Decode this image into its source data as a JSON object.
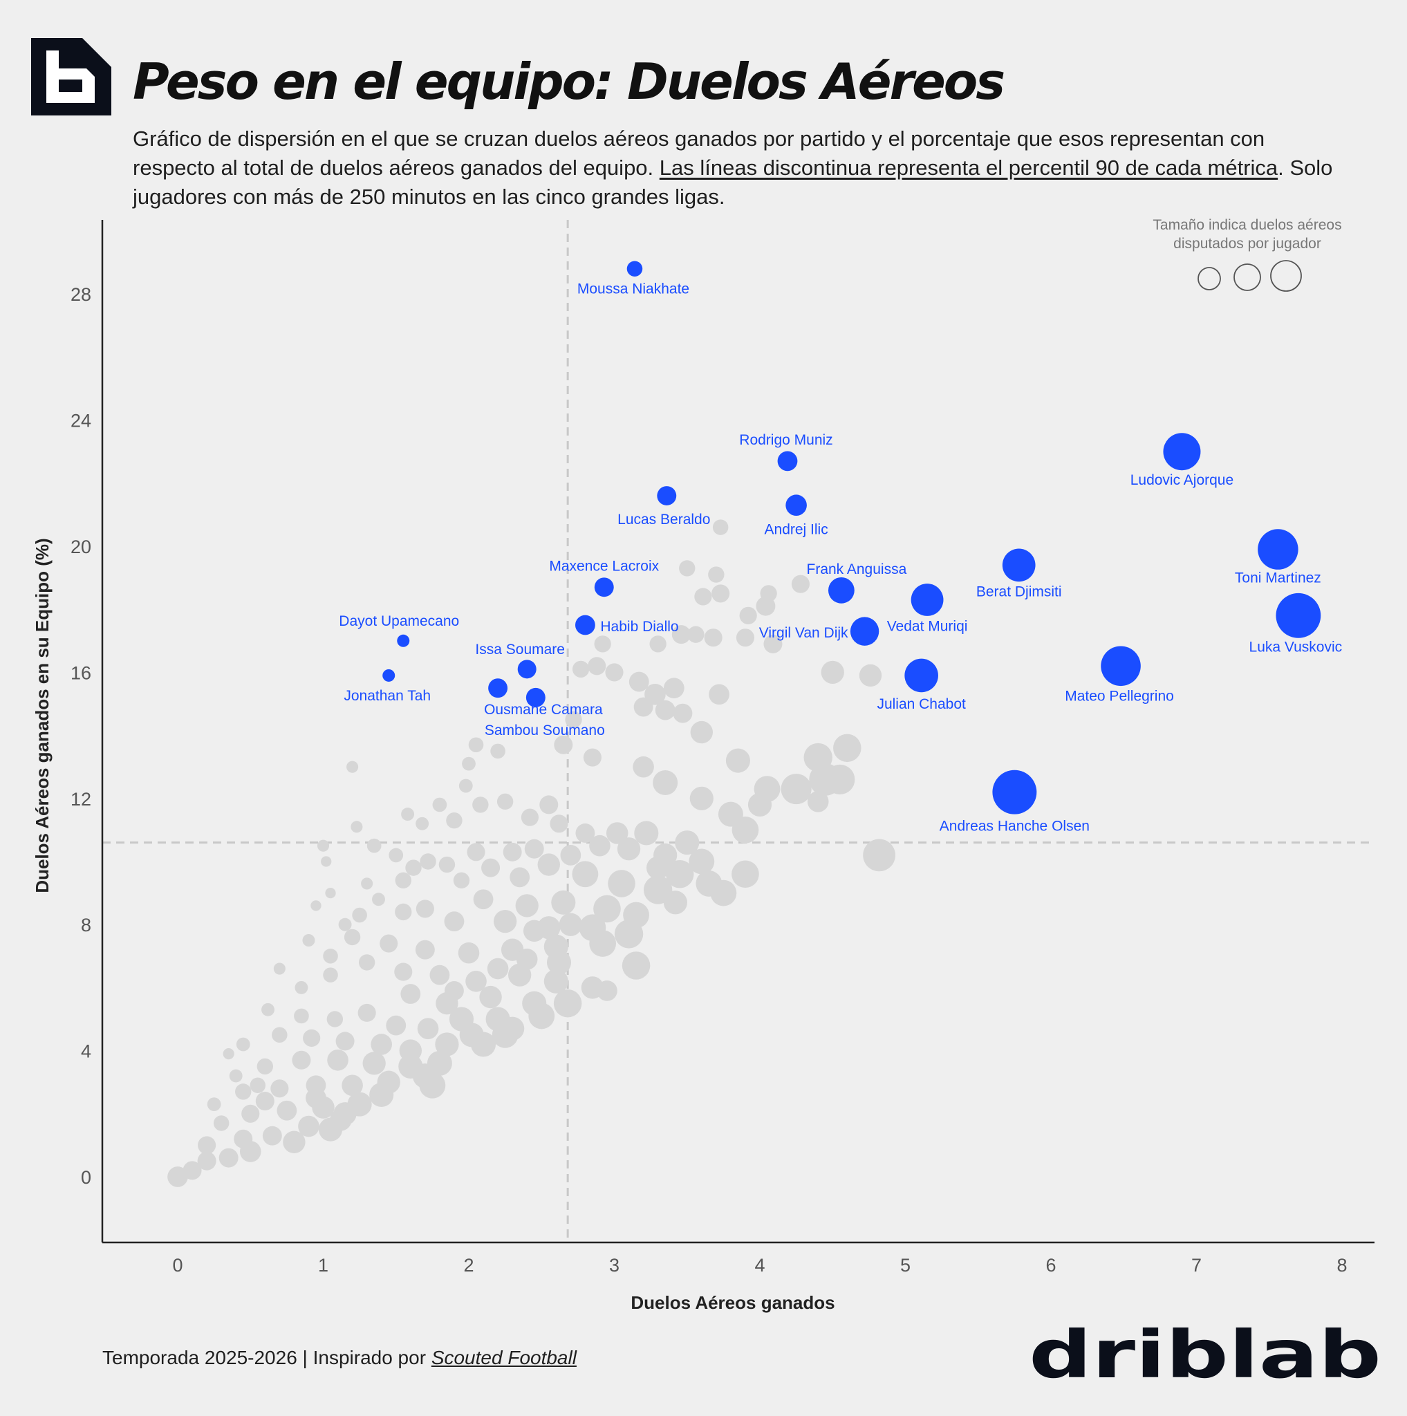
{
  "header": {
    "title": "Peso en el equipo: Duelos Aéreos",
    "subtitle_part1": "Gráfico de dispersión en el que se cruzan duelos aéreos ganados por partido y el porcentaje que esos representan con respecto al total de duelos aéreos ganados del equipo. ",
    "subtitle_link": "Las líneas discontinua representa el percentil 90 de cada métrica",
    "subtitle_part2": ". Solo jugadores con más de 250 minutos en las cinco grandes ligas."
  },
  "footer": {
    "season_text": "Temporada 2025-2026 | Inspirado por ",
    "inspired_by": "Scouted Football",
    "brand": "driblab"
  },
  "colors": {
    "highlight": "#1a4dff",
    "background_points": "#d6d6d6",
    "background": "#efefef",
    "axis": "#222222",
    "reference_line": "#c8c8c8",
    "brand_dark": "#0b0f1a"
  },
  "chart_data": {
    "type": "scatter",
    "xlabel": "Duelos Aéreos ganados",
    "ylabel": "Duelos Aéreos ganados en su Equipo (%)",
    "xlim": [
      -0.5,
      8.2
    ],
    "ylim": [
      -2,
      30.4
    ],
    "xticks": [
      0,
      1,
      2,
      3,
      4,
      5,
      6,
      7,
      8
    ],
    "yticks": [
      0,
      4,
      8,
      12,
      16,
      20,
      24,
      28
    ],
    "grid": false,
    "reference_lines": {
      "x_p90": 2.68,
      "y_p90": 10.6
    },
    "size_legend": {
      "title": "Tamaño indica duelos aéreos disputados por jugador",
      "position": "top-right"
    },
    "highlighted": [
      {
        "name": "Moussa Niakhate",
        "x": 3.14,
        "y": 28.8,
        "size": 2.5
      },
      {
        "name": "Rodrigo Muniz",
        "x": 4.19,
        "y": 22.7,
        "size": 3.2
      },
      {
        "name": "Andrej Ilic",
        "x": 4.25,
        "y": 21.3,
        "size": 3.4
      },
      {
        "name": "Lucas Beraldo",
        "x": 3.36,
        "y": 21.6,
        "size": 3.1
      },
      {
        "name": "Ludovic Ajorque",
        "x": 6.9,
        "y": 23.0,
        "size": 6.0
      },
      {
        "name": "Toni Martinez",
        "x": 7.56,
        "y": 19.9,
        "size": 6.5
      },
      {
        "name": "Luka Vuskovic",
        "x": 7.7,
        "y": 17.8,
        "size": 7.2
      },
      {
        "name": "Berat Djimsiti",
        "x": 5.78,
        "y": 19.4,
        "size": 5.3
      },
      {
        "name": "Maxence Lacroix",
        "x": 2.93,
        "y": 18.7,
        "size": 3.1
      },
      {
        "name": "Frank Anguissa",
        "x": 4.56,
        "y": 18.6,
        "size": 4.2
      },
      {
        "name": "Vedat Muriqi",
        "x": 5.15,
        "y": 18.3,
        "size": 5.2
      },
      {
        "name": "Habib Diallo",
        "x": 2.8,
        "y": 17.5,
        "size": 3.2
      },
      {
        "name": "Virgil Van Dijk",
        "x": 4.72,
        "y": 17.3,
        "size": 4.6
      },
      {
        "name": "Dayot Upamecano",
        "x": 1.55,
        "y": 17.0,
        "size": 2.0
      },
      {
        "name": "Issa Soumare",
        "x": 2.4,
        "y": 16.1,
        "size": 3.0
      },
      {
        "name": "Jonathan Tah",
        "x": 1.45,
        "y": 15.9,
        "size": 2.0
      },
      {
        "name": "Mateo Pellegrino",
        "x": 6.48,
        "y": 16.2,
        "size": 6.4
      },
      {
        "name": "Julian Chabot",
        "x": 5.11,
        "y": 15.9,
        "size": 5.4
      },
      {
        "name": "Ousmane Camara",
        "x": 2.2,
        "y": 15.5,
        "size": 3.1
      },
      {
        "name": "Sambou Soumano",
        "x": 2.46,
        "y": 15.2,
        "size": 3.1
      },
      {
        "name": "Andreas Hanche Olsen",
        "x": 5.75,
        "y": 12.2,
        "size": 7.1
      }
    ],
    "others": [
      [
        3.73,
        20.6,
        2.5
      ],
      [
        3.5,
        19.3,
        2.6
      ],
      [
        3.7,
        19.1,
        2.6
      ],
      [
        4.06,
        18.5,
        2.7
      ],
      [
        4.28,
        18.8,
        2.9
      ],
      [
        3.61,
        18.4,
        2.8
      ],
      [
        3.73,
        18.5,
        2.9
      ],
      [
        4.04,
        18.1,
        3.1
      ],
      [
        3.92,
        17.8,
        2.8
      ],
      [
        3.46,
        17.2,
        3.0
      ],
      [
        3.56,
        17.2,
        2.7
      ],
      [
        3.68,
        17.1,
        2.9
      ],
      [
        3.9,
        17.1,
        2.9
      ],
      [
        4.09,
        16.9,
        3.0
      ],
      [
        2.92,
        16.9,
        2.7
      ],
      [
        3.3,
        16.9,
        2.7
      ],
      [
        4.5,
        16.0,
        3.7
      ],
      [
        4.76,
        15.9,
        3.6
      ],
      [
        2.77,
        16.1,
        2.7
      ],
      [
        2.88,
        16.2,
        2.9
      ],
      [
        3.0,
        16.0,
        2.9
      ],
      [
        3.17,
        15.7,
        3.2
      ],
      [
        3.28,
        15.3,
        3.4
      ],
      [
        3.41,
        15.5,
        3.3
      ],
      [
        3.72,
        15.3,
        3.3
      ],
      [
        3.2,
        14.9,
        3.1
      ],
      [
        3.35,
        14.8,
        3.2
      ],
      [
        3.47,
        14.7,
        3.1
      ],
      [
        2.72,
        14.5,
        2.7
      ],
      [
        3.6,
        14.1,
        3.6
      ],
      [
        2.65,
        13.7,
        3.0
      ],
      [
        2.85,
        13.3,
        2.9
      ],
      [
        3.2,
        13.0,
        3.4
      ],
      [
        3.35,
        12.5,
        4.0
      ],
      [
        3.6,
        12.0,
        3.8
      ],
      [
        3.85,
        13.2,
        3.9
      ],
      [
        4.05,
        12.3,
        4.2
      ],
      [
        4.4,
        13.3,
        4.6
      ],
      [
        4.45,
        12.6,
        5.2
      ],
      [
        4.25,
        12.3,
        4.9
      ],
      [
        4.55,
        12.6,
        4.8
      ],
      [
        4.0,
        11.8,
        3.8
      ],
      [
        3.8,
        11.5,
        4.0
      ],
      [
        3.9,
        11.0,
        4.3
      ],
      [
        4.4,
        11.9,
        3.4
      ],
      [
        4.6,
        13.6,
        4.5
      ],
      [
        2.05,
        13.7,
        2.4
      ],
      [
        2.2,
        13.5,
        2.4
      ],
      [
        2.0,
        13.1,
        2.2
      ],
      [
        1.98,
        12.4,
        2.2
      ],
      [
        1.2,
        13.0,
        1.9
      ],
      [
        1.23,
        11.1,
        1.9
      ],
      [
        1.58,
        11.5,
        2.1
      ],
      [
        1.68,
        11.2,
        2.1
      ],
      [
        1.8,
        11.8,
        2.3
      ],
      [
        1.9,
        11.3,
        2.6
      ],
      [
        2.08,
        11.8,
        2.6
      ],
      [
        2.25,
        11.9,
        2.6
      ],
      [
        2.42,
        11.4,
        2.8
      ],
      [
        2.55,
        11.8,
        3.0
      ],
      [
        2.62,
        11.2,
        2.9
      ],
      [
        2.8,
        10.9,
        3.1
      ],
      [
        3.02,
        10.9,
        3.5
      ],
      [
        3.22,
        10.9,
        3.9
      ],
      [
        3.5,
        10.6,
        3.9
      ],
      [
        3.45,
        9.6,
        4.5
      ],
      [
        3.65,
        9.3,
        4.2
      ],
      [
        3.75,
        9.0,
        4.2
      ],
      [
        3.9,
        9.6,
        4.4
      ],
      [
        4.82,
        10.2,
        5.2
      ],
      [
        1.0,
        10.5,
        1.9
      ],
      [
        1.02,
        10.0,
        1.7
      ],
      [
        1.05,
        9.0,
        1.7
      ],
      [
        0.95,
        8.6,
        1.7
      ],
      [
        1.3,
        9.3,
        1.9
      ],
      [
        1.38,
        8.8,
        2.1
      ],
      [
        1.55,
        9.4,
        2.6
      ],
      [
        1.62,
        9.8,
        2.6
      ],
      [
        1.85,
        9.9,
        2.6
      ],
      [
        1.95,
        9.4,
        2.6
      ],
      [
        2.15,
        9.8,
        3.0
      ],
      [
        2.35,
        9.5,
        3.2
      ],
      [
        2.55,
        9.9,
        3.6
      ],
      [
        2.8,
        9.6,
        4.2
      ],
      [
        3.05,
        9.3,
        4.4
      ],
      [
        3.3,
        9.1,
        4.6
      ],
      [
        2.65,
        8.7,
        3.9
      ],
      [
        2.95,
        8.5,
        4.4
      ],
      [
        3.15,
        8.3,
        4.2
      ],
      [
        3.42,
        8.7,
        3.8
      ],
      [
        2.4,
        8.6,
        3.7
      ],
      [
        2.1,
        8.8,
        3.2
      ],
      [
        1.7,
        8.5,
        2.9
      ],
      [
        1.9,
        8.1,
        3.2
      ],
      [
        2.25,
        8.1,
        3.7
      ],
      [
        2.55,
        7.9,
        3.7
      ],
      [
        2.85,
        7.9,
        4.3
      ],
      [
        3.1,
        7.7,
        4.6
      ],
      [
        2.92,
        7.4,
        4.3
      ],
      [
        2.6,
        7.3,
        3.9
      ],
      [
        2.3,
        7.2,
        3.6
      ],
      [
        2.0,
        7.1,
        3.4
      ],
      [
        1.7,
        7.2,
        3.1
      ],
      [
        1.45,
        7.4,
        2.9
      ],
      [
        1.2,
        7.6,
        2.6
      ],
      [
        1.15,
        8.0,
        2.1
      ],
      [
        0.9,
        7.5,
        2.0
      ],
      [
        0.7,
        6.6,
        1.9
      ],
      [
        0.85,
        6.0,
        2.1
      ],
      [
        1.05,
        6.4,
        2.4
      ],
      [
        1.3,
        6.8,
        2.6
      ],
      [
        1.55,
        6.5,
        2.9
      ],
      [
        1.8,
        6.4,
        3.2
      ],
      [
        2.05,
        6.2,
        3.4
      ],
      [
        2.35,
        6.4,
        3.7
      ],
      [
        2.6,
        6.2,
        3.9
      ],
      [
        3.15,
        6.7,
        4.5
      ],
      [
        1.6,
        5.8,
        3.2
      ],
      [
        1.85,
        5.5,
        3.6
      ],
      [
        2.15,
        5.7,
        3.6
      ],
      [
        2.45,
        5.5,
        3.9
      ],
      [
        2.68,
        5.5,
        4.5
      ],
      [
        2.5,
        5.1,
        4.2
      ],
      [
        2.2,
        5.0,
        3.9
      ],
      [
        1.95,
        5.0,
        3.9
      ],
      [
        0.62,
        5.3,
        2.1
      ],
      [
        0.85,
        5.1,
        2.4
      ],
      [
        1.08,
        5.0,
        2.6
      ],
      [
        1.3,
        5.2,
        2.9
      ],
      [
        1.5,
        4.8,
        3.2
      ],
      [
        1.72,
        4.7,
        3.4
      ],
      [
        2.02,
        4.5,
        3.9
      ],
      [
        2.25,
        4.5,
        4.2
      ],
      [
        2.1,
        4.2,
        4.0
      ],
      [
        1.85,
        4.2,
        3.8
      ],
      [
        1.6,
        4.0,
        3.6
      ],
      [
        1.4,
        4.2,
        3.4
      ],
      [
        1.15,
        4.3,
        3.0
      ],
      [
        0.92,
        4.4,
        2.8
      ],
      [
        0.7,
        4.5,
        2.5
      ],
      [
        0.45,
        4.2,
        2.2
      ],
      [
        0.35,
        3.9,
        1.8
      ],
      [
        0.4,
        3.2,
        2.1
      ],
      [
        0.6,
        3.5,
        2.6
      ],
      [
        0.85,
        3.7,
        3.0
      ],
      [
        1.1,
        3.7,
        3.4
      ],
      [
        1.35,
        3.6,
        3.7
      ],
      [
        1.6,
        3.5,
        3.9
      ],
      [
        1.8,
        3.6,
        4.0
      ],
      [
        1.7,
        3.2,
        4.0
      ],
      [
        1.45,
        3.0,
        3.7
      ],
      [
        1.2,
        2.9,
        3.4
      ],
      [
        0.95,
        2.9,
        3.2
      ],
      [
        0.7,
        2.8,
        2.9
      ],
      [
        0.45,
        2.7,
        2.6
      ],
      [
        0.25,
        2.3,
        2.2
      ],
      [
        0.3,
        1.7,
        2.5
      ],
      [
        0.5,
        2.0,
        2.9
      ],
      [
        0.75,
        2.1,
        3.2
      ],
      [
        1.0,
        2.2,
        3.6
      ],
      [
        1.25,
        2.3,
        3.9
      ],
      [
        1.15,
        2.0,
        3.7
      ],
      [
        0.9,
        1.6,
        3.4
      ],
      [
        0.65,
        1.3,
        3.1
      ],
      [
        0.45,
        1.2,
        3.0
      ],
      [
        0.2,
        1.0,
        2.9
      ],
      [
        0.5,
        0.8,
        3.4
      ],
      [
        0.8,
        1.1,
        3.6
      ],
      [
        1.05,
        1.5,
        3.8
      ],
      [
        1.4,
        2.6,
        3.9
      ],
      [
        1.75,
        2.9,
        4.2
      ],
      [
        0.95,
        2.5,
        3.3
      ],
      [
        0.6,
        2.4,
        3.0
      ],
      [
        0.2,
        0.5,
        3.0
      ],
      [
        0.0,
        0.0,
        3.3
      ],
      [
        0.1,
        0.2,
        3.0
      ],
      [
        0.35,
        0.6,
        3.1
      ],
      [
        1.12,
        1.8,
        3.5
      ],
      [
        2.3,
        4.7,
        3.8
      ],
      [
        2.62,
        6.8,
        3.9
      ],
      [
        2.85,
        6.0,
        3.6
      ],
      [
        2.4,
        6.9,
        3.4
      ],
      [
        2.95,
        5.9,
        3.3
      ],
      [
        1.9,
        5.9,
        3.1
      ],
      [
        2.2,
        6.6,
        3.4
      ],
      [
        2.45,
        7.8,
        3.5
      ],
      [
        2.7,
        8.0,
        3.7
      ],
      [
        3.3,
        9.8,
        3.7
      ],
      [
        3.6,
        10.0,
        4.1
      ],
      [
        2.3,
        10.3,
        3.0
      ],
      [
        2.05,
        10.3,
        2.9
      ],
      [
        2.45,
        10.4,
        3.1
      ],
      [
        2.7,
        10.2,
        3.3
      ],
      [
        2.9,
        10.5,
        3.4
      ],
      [
        3.1,
        10.4,
        3.7
      ],
      [
        3.35,
        10.2,
        3.8
      ],
      [
        1.72,
        10.0,
        2.6
      ],
      [
        1.5,
        10.2,
        2.3
      ],
      [
        1.35,
        10.5,
        2.3
      ],
      [
        1.55,
        8.4,
        2.7
      ],
      [
        1.25,
        8.3,
        2.4
      ],
      [
        1.05,
        7.0,
        2.4
      ],
      [
        0.55,
        2.9,
        2.5
      ]
    ]
  }
}
